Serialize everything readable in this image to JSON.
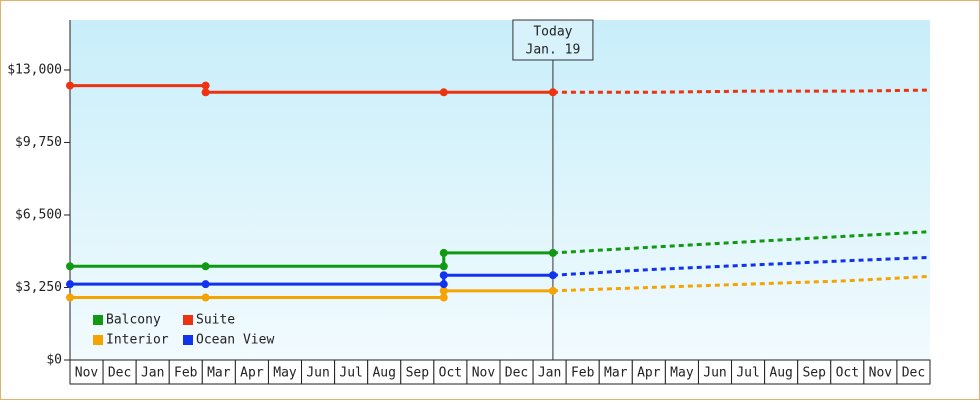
{
  "chart_data": {
    "type": "line",
    "categories": [
      "Nov",
      "Dec",
      "Jan",
      "Feb",
      "Mar",
      "Apr",
      "May",
      "Jun",
      "Jul",
      "Aug",
      "Sep",
      "Oct",
      "Nov",
      "Dec",
      "Jan",
      "Feb",
      "Mar",
      "Apr",
      "May",
      "Jun",
      "Jul",
      "Aug",
      "Sep",
      "Oct",
      "Nov",
      "Dec"
    ],
    "xlim": [
      0,
      26
    ],
    "ylim": [
      0,
      15240
    ],
    "yticks": [
      {
        "value": 0,
        "label": "$0"
      },
      {
        "value": 3250,
        "label": "$3,250"
      },
      {
        "value": 6500,
        "label": "$6,500"
      },
      {
        "value": 9750,
        "label": "$9,750"
      },
      {
        "value": 13000,
        "label": "$13,000"
      }
    ],
    "annotation": {
      "x": 14.6,
      "lines": [
        "Today",
        "Jan. 19"
      ]
    },
    "series": [
      {
        "name": "Balcony",
        "color": "#119911",
        "x": [
          0,
          4.1,
          11.3,
          11.3,
          14.6
        ],
        "values": [
          4200,
          4200,
          4200,
          4800,
          4800
        ],
        "forecast": {
          "x": [
            14.6,
            17.5,
            20.5,
            23.5,
            26
          ],
          "values": [
            4800,
            5050,
            5300,
            5550,
            5750
          ]
        }
      },
      {
        "name": "Suite",
        "color": "#ee3311",
        "x": [
          0,
          4.1,
          4.1,
          11.3,
          14.6
        ],
        "values": [
          12300,
          12300,
          12000,
          12000,
          12000
        ],
        "forecast": {
          "x": [
            14.6,
            17.5,
            20.5,
            23.5,
            26
          ],
          "values": [
            12000,
            12000,
            12050,
            12050,
            12100
          ]
        }
      },
      {
        "name": "Interior",
        "color": "#f5a300",
        "x": [
          0,
          4.1,
          11.3,
          11.3,
          14.6
        ],
        "values": [
          2800,
          2800,
          2800,
          3100,
          3100
        ],
        "forecast": {
          "x": [
            14.6,
            17.5,
            20.5,
            23.5,
            26
          ],
          "values": [
            3100,
            3250,
            3400,
            3550,
            3750
          ]
        }
      },
      {
        "name": "Ocean View",
        "color": "#1133ee",
        "x": [
          0,
          4.1,
          11.3,
          11.3,
          14.6
        ],
        "values": [
          3400,
          3400,
          3400,
          3800,
          3800
        ],
        "forecast": {
          "x": [
            14.6,
            17.5,
            20.5,
            23.5,
            26
          ],
          "values": [
            3800,
            4050,
            4250,
            4450,
            4600
          ]
        }
      }
    ]
  }
}
